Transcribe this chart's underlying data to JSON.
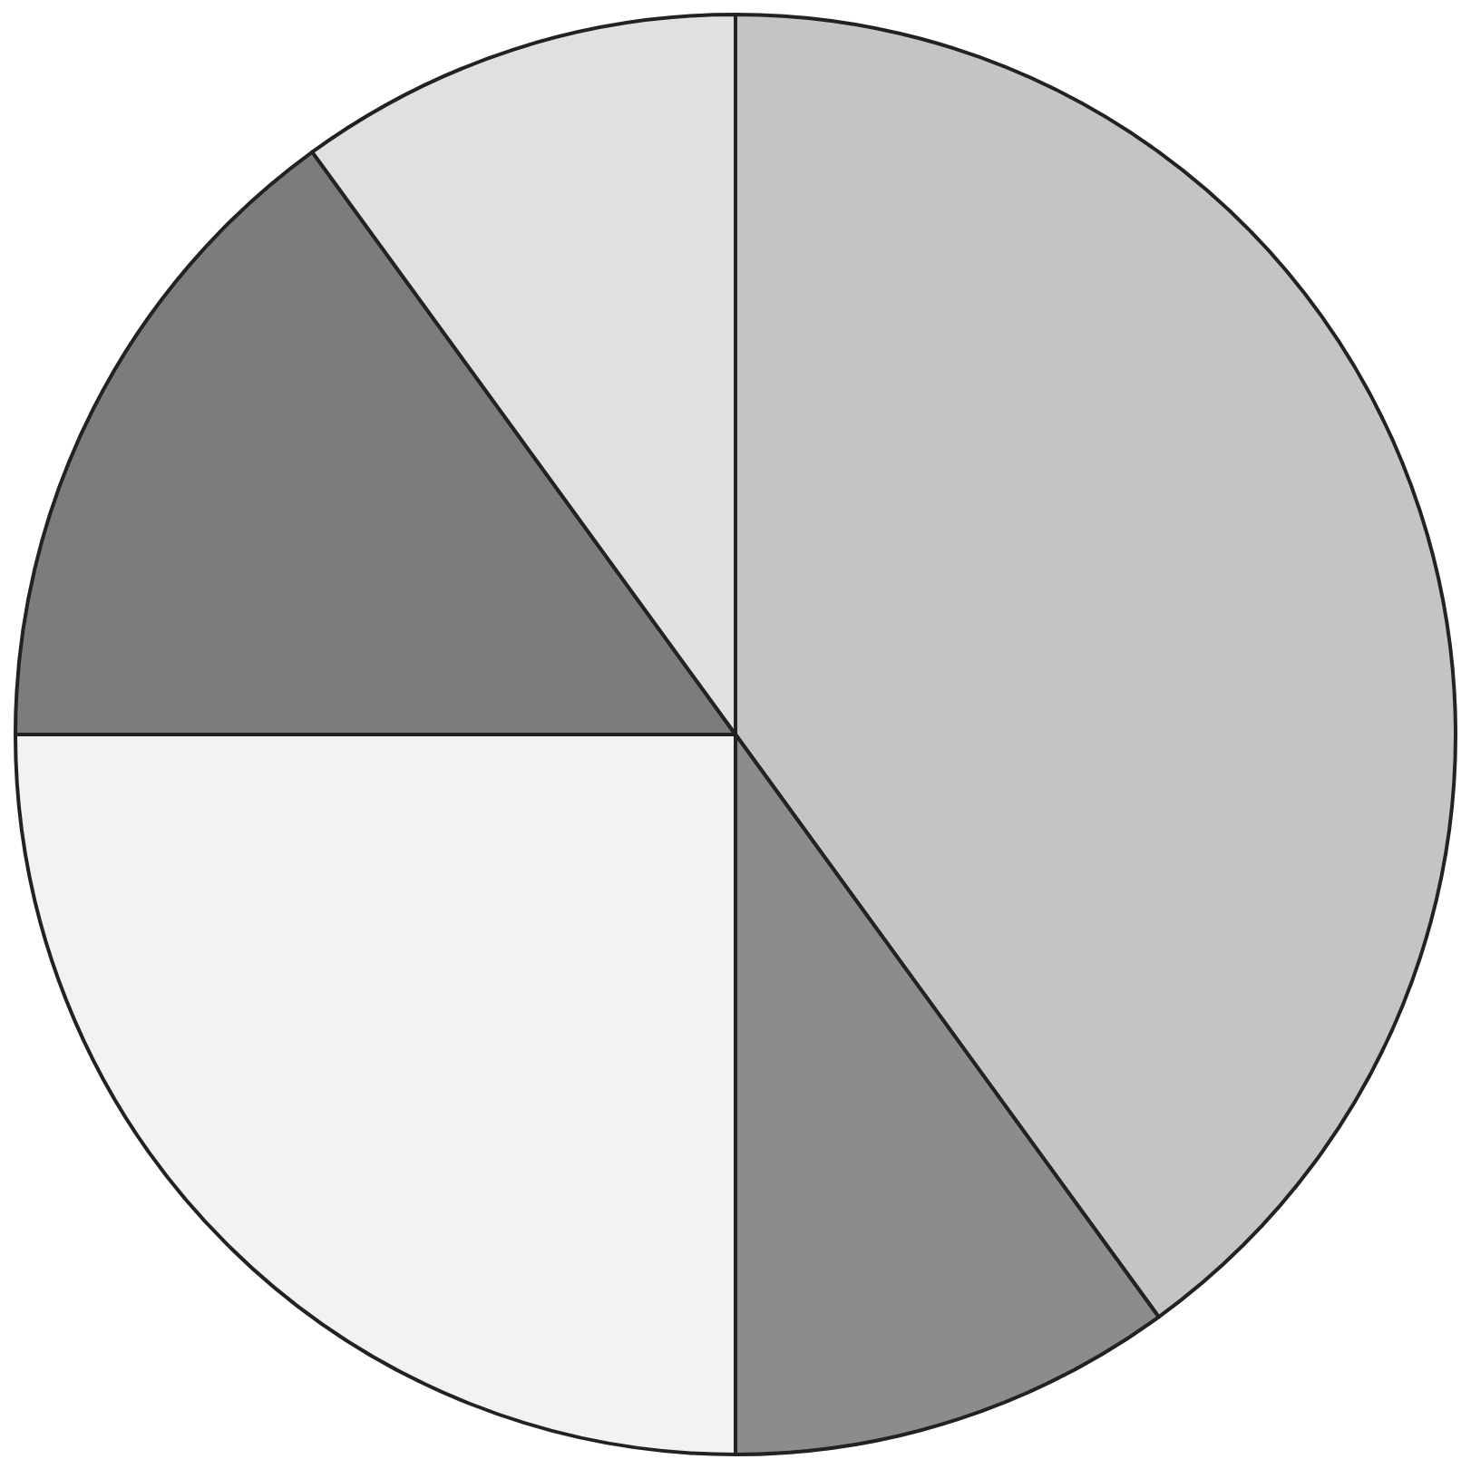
{
  "chart_data": {
    "type": "pie",
    "categories": [
      null,
      null,
      null,
      null,
      null
    ],
    "values": [
      40,
      10,
      25,
      15,
      10
    ],
    "colors": [
      "#c4c4c4",
      "#8c8c8c",
      "#f2f2f2",
      "#7c7c7c",
      "#e0e0e0"
    ],
    "legend": false
  }
}
